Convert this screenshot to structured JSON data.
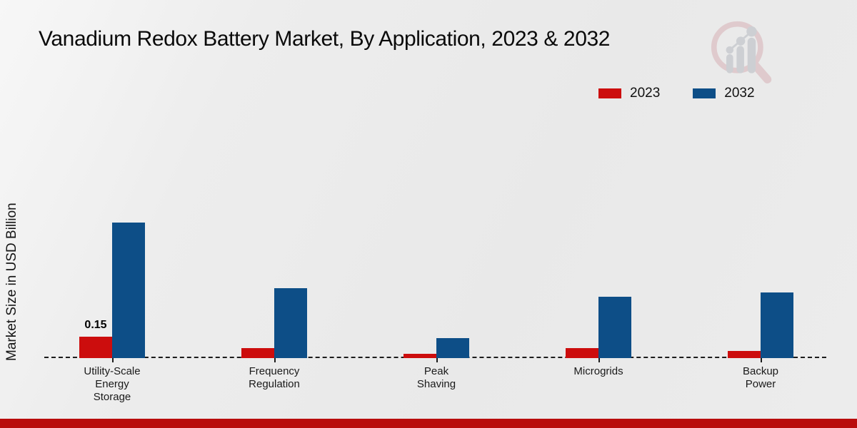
{
  "chart_data": {
    "type": "bar",
    "title": "Vanadium Redox Battery Market, By Application, 2023 & 2032",
    "ylabel": "Market Size in USD Billion",
    "xlabel": "",
    "categories": [
      "Utility-Scale Energy Storage",
      "Frequency Regulation",
      "Peak Shaving",
      "Microgrids",
      "Backup Power"
    ],
    "category_lines": [
      [
        "Utility-Scale",
        "Energy",
        "Storage"
      ],
      [
        "Frequency",
        "Regulation"
      ],
      [
        "Peak",
        "Shaving"
      ],
      [
        "Microgrids"
      ],
      [
        "Backup",
        "Power"
      ]
    ],
    "series": [
      {
        "name": "2023",
        "color": "#cc0d0d",
        "values": [
          0.15,
          0.07,
          0.03,
          0.07,
          0.05
        ]
      },
      {
        "name": "2032",
        "color": "#0d4e87",
        "values": [
          0.95,
          0.49,
          0.14,
          0.43,
          0.46
        ]
      }
    ],
    "data_labels": [
      "0.15",
      "",
      "",
      "",
      ""
    ],
    "ylim": [
      0,
      1.0
    ],
    "grid": false,
    "legend_position": "top-right",
    "baseline_style": "dashed"
  },
  "colors": {
    "series_2023": "#cc0d0d",
    "series_2032": "#0d4e87",
    "footer_bar": "#b90c0c",
    "background": "#ececec",
    "logo_ring": "#ddc3c6",
    "logo_bars": "#c6c9ce"
  },
  "logo": {
    "name": "market-research-logo-watermark"
  }
}
